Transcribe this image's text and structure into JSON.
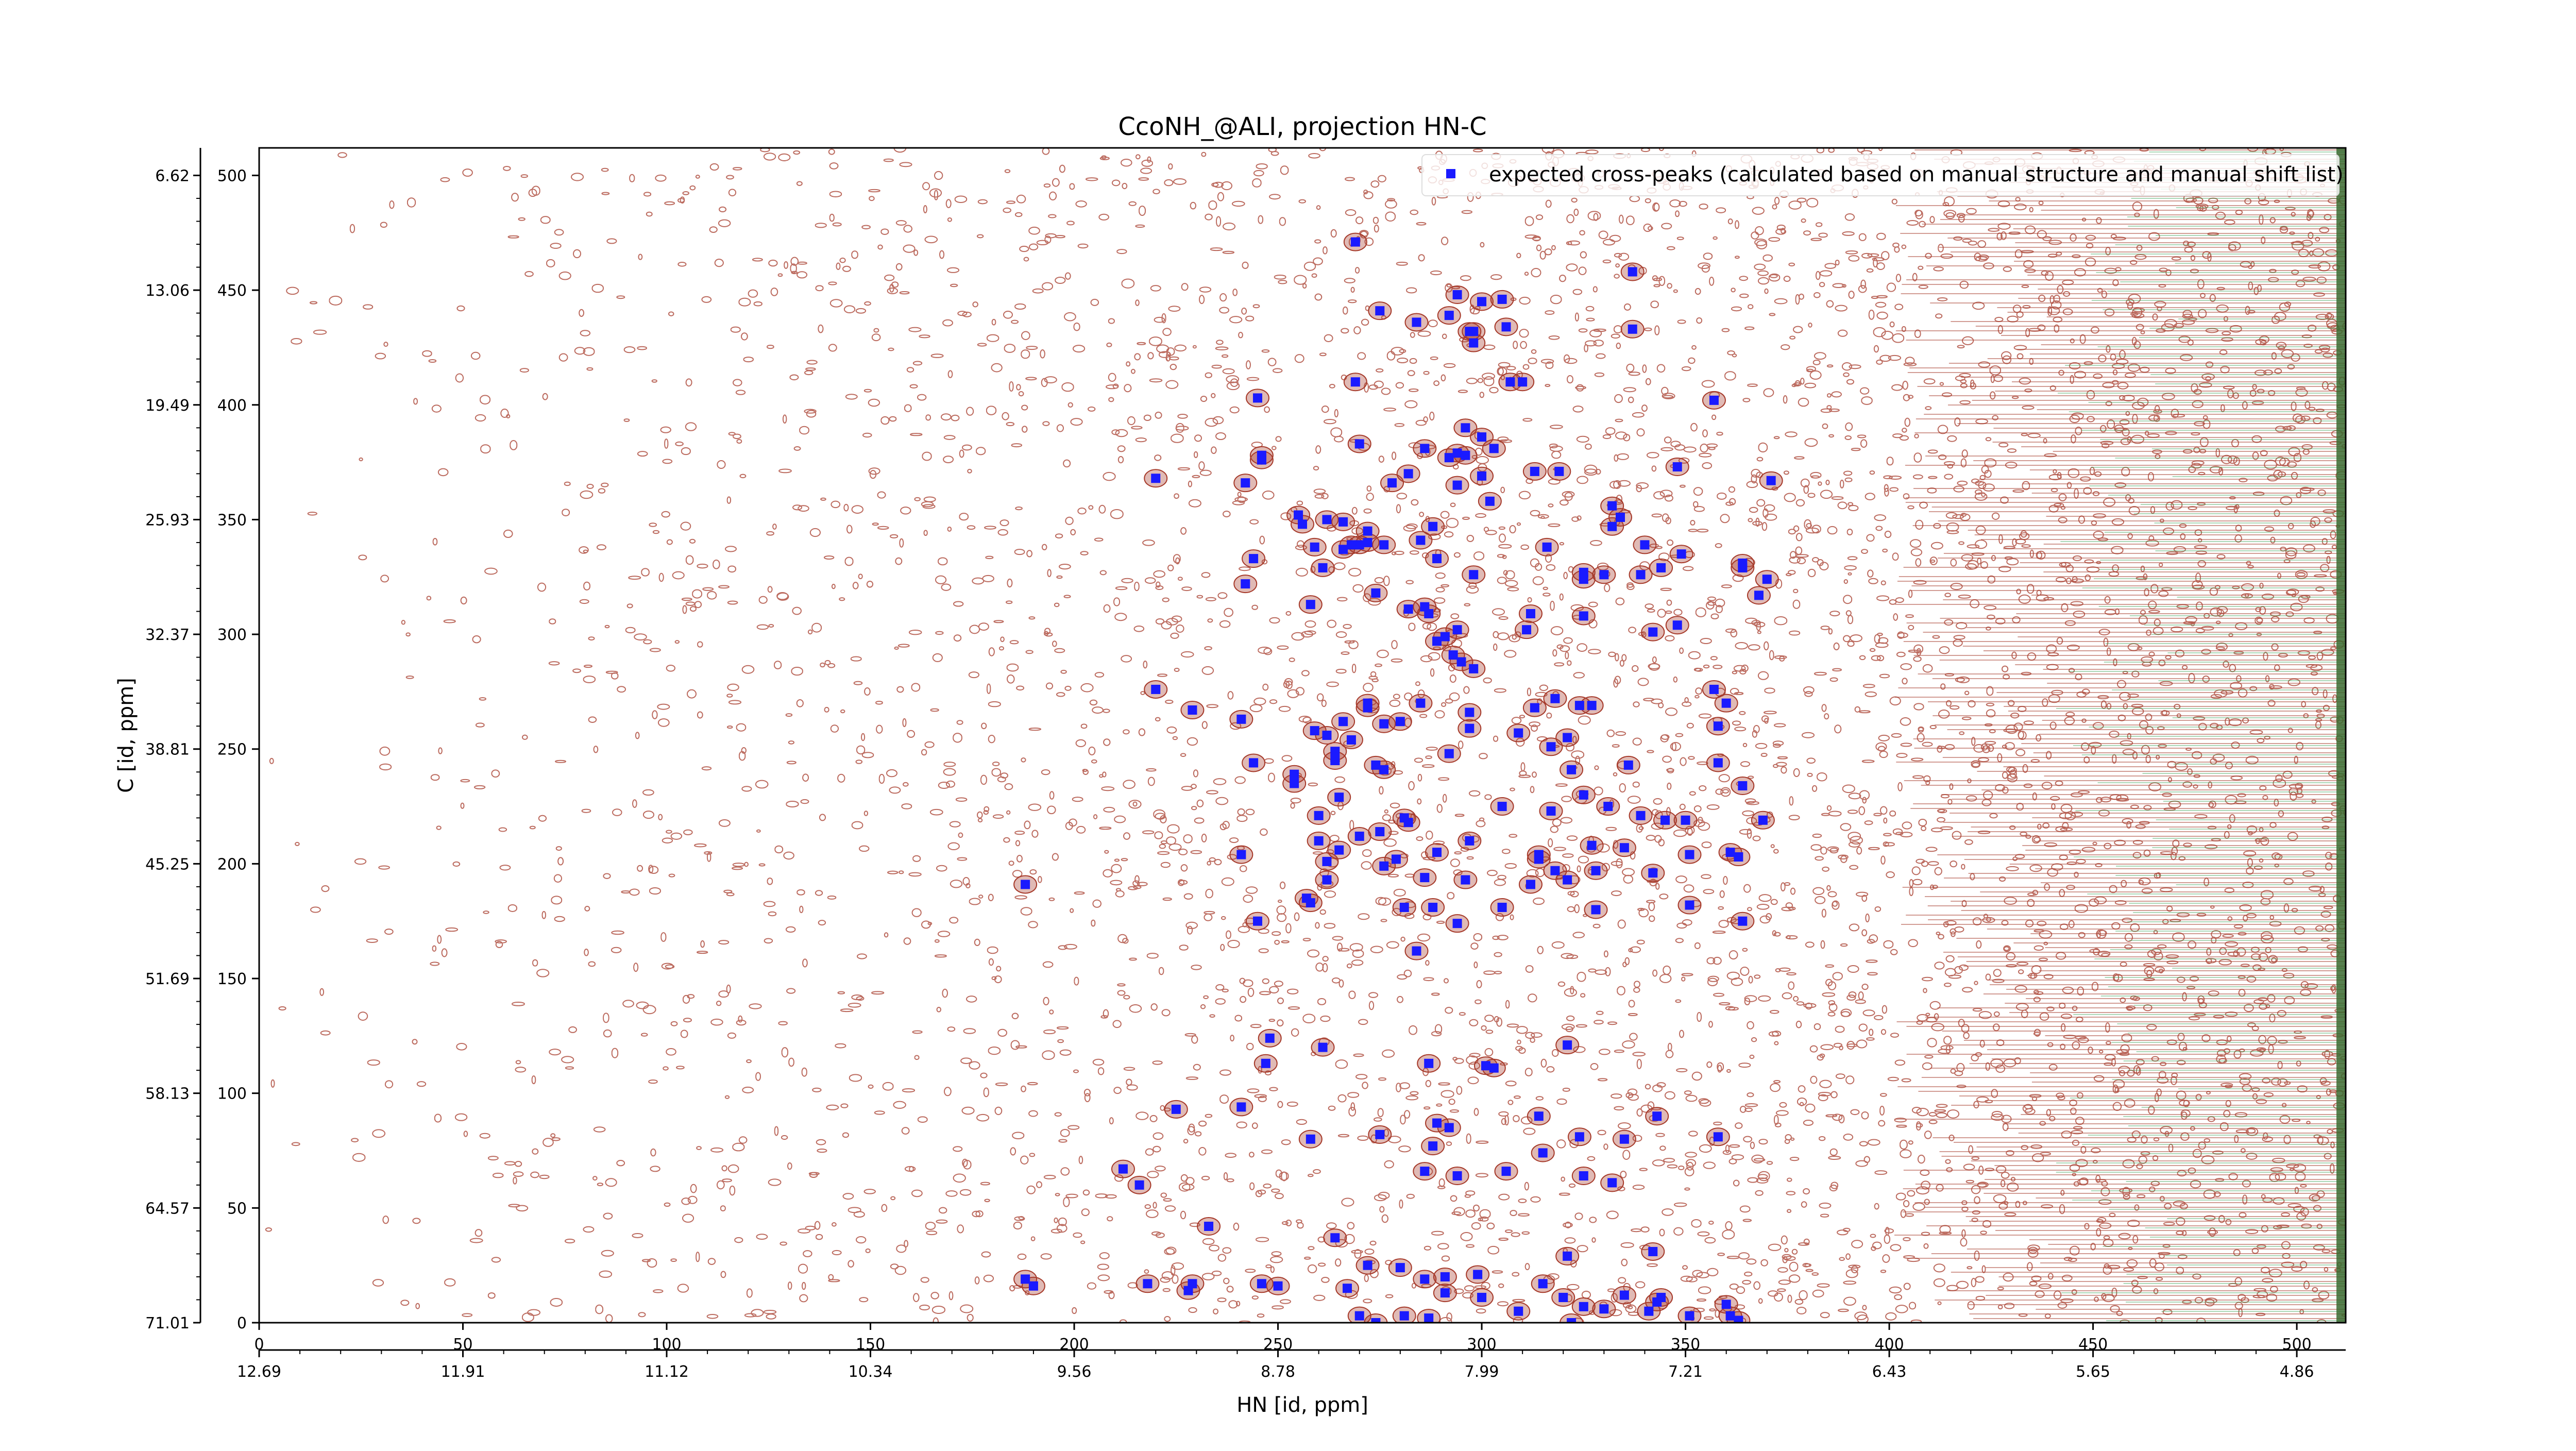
{
  "chart_data": {
    "type": "scatter",
    "title": "CcoNH_@ALI, projection HN-C",
    "xlabel": "HN [id, ppm]",
    "ylabel": "C [id, ppm]",
    "xlim": [
      0,
      512
    ],
    "ylim": [
      0,
      512
    ],
    "x_ticks": [
      0,
      50,
      100,
      150,
      200,
      250,
      300,
      350,
      400,
      450,
      500
    ],
    "y_ticks": [
      0,
      50,
      100,
      150,
      200,
      250,
      300,
      350,
      400,
      450,
      500
    ],
    "x_ppm_ticks": [
      "12.69",
      "11.91",
      "11.12",
      "10.34",
      "9.56",
      "8.78",
      "7.99",
      "7.21",
      "6.43",
      "5.65",
      "4.86"
    ],
    "y_ppm_ticks": [
      "71.01",
      "64.57",
      "58.13",
      "51.69",
      "45.25",
      "38.81",
      "32.37",
      "25.93",
      "19.49",
      "13.06",
      "6.62"
    ],
    "legend": {
      "position": "top-right",
      "entries": [
        {
          "label": "expected cross-peaks (calculated based on manual structure and manual shift list)"
        }
      ]
    },
    "contour_colors": {
      "positive": "#a63a2a",
      "negative": "#2e9a4a"
    },
    "marker_color": "#1a1aff",
    "series": [
      {
        "name": "expected cross-peaks (calculated based on manual structure and manual shift list)",
        "x": [
          269,
          294,
          305,
          337,
          275,
          284,
          292,
          306,
          298,
          298,
          300,
          297,
          310,
          245,
          307,
          269,
          337,
          357,
          246,
          242,
          220,
          246,
          294,
          296,
          300,
          303,
          313,
          319,
          270,
          286,
          292,
          296,
          282,
          278,
          294,
          300,
          348,
          371,
          332,
          302,
          255,
          262,
          266,
          272,
          270,
          276,
          285,
          332,
          256,
          288,
          268,
          259,
          316,
          340,
          334,
          244,
          266,
          272,
          289,
          325,
          344,
          364,
          349,
          242,
          274,
          298,
          261,
          330,
          339,
          258,
          312,
          282,
          325,
          364,
          368,
          370,
          286,
          287,
          294,
          289,
          311,
          291,
          348,
          342,
          325,
          293,
          295,
          298,
          272,
          276,
          297,
          272,
          241,
          262,
          220,
          244,
          292,
          309,
          229,
          318,
          313,
          285,
          266,
          259,
          324,
          297,
          280,
          327,
          360,
          357,
          268,
          274,
          317,
          321,
          264,
          358,
          254,
          264,
          254,
          276,
          322,
          358,
          364,
          336,
          281,
          265,
          317,
          331,
          339,
          325,
          369,
          305,
          260,
          270,
          265,
          297,
          289,
          260,
          314,
          282,
          241,
          314,
          351,
          328,
          327,
          335,
          361,
          363,
          275,
          262,
          318,
          262,
          286,
          342,
          279,
          276,
          296,
          257,
          321,
          281,
          258,
          294,
          305,
          328,
          312,
          351,
          364,
          288,
          350,
          345,
          245,
          188,
          284,
          248,
          247,
          261,
          301,
          303,
          321,
          287,
          241,
          225,
          292,
          314,
          324,
          343,
          289,
          335,
          258,
          288,
          358,
          315,
          275,
          286,
          294,
          325,
          306,
          332,
          212,
          216,
          233,
          264,
          342,
          321,
          272,
          280,
          291,
          286,
          299,
          250,
          190,
          188,
          246,
          229,
          228,
          267,
          218,
          291,
          315,
          335,
          344,
          300,
          320,
          343,
          325,
          270,
          341,
          351,
          274,
          361,
          360,
          309,
          330,
          363,
          287,
          322,
          281
        ],
        "y": [
          471,
          448,
          446,
          458,
          441,
          436,
          439,
          434,
          432,
          427,
          445,
          432,
          410,
          403,
          410,
          410,
          433,
          402,
          376,
          366,
          368,
          378,
          379,
          390,
          386,
          381,
          371,
          371,
          383,
          381,
          377,
          378,
          370,
          366,
          365,
          369,
          373,
          367,
          356,
          358,
          352,
          350,
          349,
          345,
          339,
          339,
          341,
          347,
          348,
          347,
          339,
          338,
          338,
          339,
          351,
          333,
          337,
          340,
          333,
          327,
          329,
          331,
          335,
          322,
          318,
          326,
          329,
          326,
          326,
          313,
          309,
          311,
          324,
          329,
          317,
          324,
          312,
          309,
          302,
          297,
          302,
          299,
          304,
          301,
          308,
          291,
          288,
          285,
          270,
          261,
          266,
          268,
          263,
          256,
          276,
          244,
          248,
          257,
          267,
          272,
          268,
          270,
          262,
          258,
          269,
          259,
          262,
          269,
          270,
          276,
          254,
          243,
          251,
          255,
          245,
          260,
          239,
          249,
          235,
          241,
          241,
          244,
          234,
          243,
          220,
          229,
          223,
          225,
          221,
          230,
          219,
          225,
          210,
          212,
          206,
          210,
          205,
          221,
          204,
          218,
          204,
          202,
          204,
          197,
          208,
          207,
          205,
          203,
          214,
          201,
          197,
          193,
          194,
          196,
          202,
          199,
          193,
          185,
          193,
          181,
          183,
          174,
          181,
          180,
          191,
          182,
          175,
          181,
          219,
          219,
          175,
          191,
          162,
          124,
          113,
          120,
          112,
          111,
          121,
          113,
          94,
          93,
          85,
          90,
          81,
          90,
          87,
          80,
          80,
          77,
          81,
          74,
          82,
          66,
          64,
          64,
          66,
          61,
          67,
          60,
          42,
          37,
          31,
          29,
          25,
          24,
          20,
          19,
          21,
          16,
          16,
          19,
          17,
          17,
          14,
          15,
          17,
          13,
          17,
          12,
          11,
          11,
          11,
          9,
          7,
          3,
          5,
          3,
          0,
          3,
          8,
          5,
          6,
          1,
          2,
          0,
          3
        ]
      }
    ]
  }
}
